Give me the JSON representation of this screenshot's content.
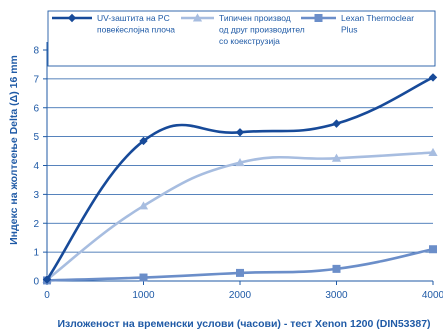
{
  "chart_data": {
    "type": "line",
    "xlabel": "Изложеност на временски услови (часови) - тест Xenon 1200 (DIN53387)",
    "ylabel": "Индекс на жолтеење Delta (Δ) 16 mm",
    "xlim": [
      0,
      4000
    ],
    "ylim": [
      0,
      8
    ],
    "x_ticks": [
      "0",
      "1000",
      "2000",
      "3000",
      "4000"
    ],
    "y_ticks": [
      "0",
      "1",
      "2",
      "3",
      "4",
      "5",
      "6",
      "7",
      "8"
    ],
    "grid": "horizontal",
    "legend_position": "top",
    "series": [
      {
        "name_lines": [
          "UV-заштита на PC",
          "повеќеслојна плоча"
        ],
        "color": "#174a99",
        "marker": "diamond",
        "x": [
          0,
          1000,
          2000,
          3000,
          4000
        ],
        "values": [
          0.05,
          4.85,
          5.15,
          5.45,
          7.05
        ]
      },
      {
        "name_lines": [
          "Типичен производ",
          "од друг производител",
          "со коекструзија"
        ],
        "color": "#a7bde0",
        "marker": "triangle",
        "x": [
          0,
          1000,
          2000,
          3000,
          4000
        ],
        "values": [
          0.05,
          2.6,
          4.1,
          4.25,
          4.45
        ]
      },
      {
        "name_lines": [
          "Lexan Thermoclear",
          "Plus"
        ],
        "color": "#6b8ec9",
        "marker": "square",
        "x": [
          0,
          1000,
          2000,
          3000,
          4000
        ],
        "values": [
          0.02,
          0.12,
          0.28,
          0.42,
          1.1
        ]
      }
    ]
  }
}
